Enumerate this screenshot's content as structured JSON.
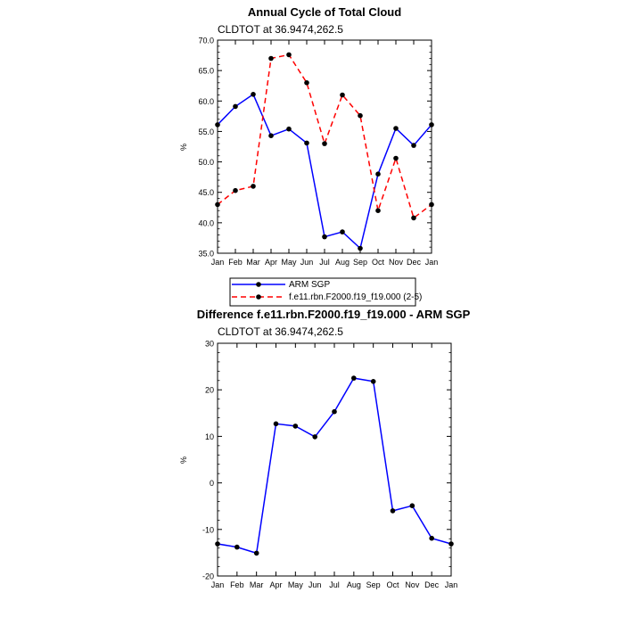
{
  "chart_data": [
    {
      "type": "line",
      "title": "Annual Cycle of Total Cloud",
      "subtitle": "CLDTOT at 36.9474,262.5",
      "xlabel": "",
      "ylabel": "%",
      "categories": [
        "Jan",
        "Feb",
        "Mar",
        "Apr",
        "May",
        "Jun",
        "Jul",
        "Aug",
        "Sep",
        "Oct",
        "Nov",
        "Dec",
        "Jan"
      ],
      "ylim": [
        35.0,
        70.0
      ],
      "yticks": [
        35.0,
        40.0,
        45.0,
        50.0,
        55.0,
        60.0,
        65.0,
        70.0
      ],
      "ytick_labels": [
        "35.0",
        "40.0",
        "45.0",
        "50.0",
        "55.0",
        "60.0",
        "65.0",
        "70.0"
      ],
      "legend_position": "below",
      "series": [
        {
          "name": "ARM SGP",
          "color": "#0000ff",
          "style": "solid",
          "values": [
            56.1,
            59.1,
            61.1,
            54.3,
            55.4,
            53.1,
            37.7,
            38.5,
            35.8,
            48.0,
            55.5,
            52.7,
            56.1
          ]
        },
        {
          "name": "f.e11.rbn.F2000.f19_f19.000 (2-5)",
          "color": "#ff0000",
          "style": "dashed",
          "values": [
            43.0,
            45.3,
            46.0,
            67.0,
            67.6,
            63.0,
            53.0,
            61.0,
            57.6,
            42.0,
            50.6,
            40.8,
            43.0
          ]
        }
      ]
    },
    {
      "type": "line",
      "title": "Difference f.e11.rbn.F2000.f19_f19.000 - ARM SGP",
      "subtitle": "CLDTOT at 36.9474,262.5",
      "xlabel": "",
      "ylabel": "%",
      "categories": [
        "Jan",
        "Feb",
        "Mar",
        "Apr",
        "May",
        "Jun",
        "Jul",
        "Aug",
        "Sep",
        "Oct",
        "Nov",
        "Dec",
        "Jan"
      ],
      "ylim": [
        -20,
        30
      ],
      "yticks": [
        -20,
        -10,
        0,
        10,
        20,
        30
      ],
      "ytick_labels": [
        "-20",
        "-10",
        "0",
        "10",
        "20",
        "30"
      ],
      "series": [
        {
          "name": "Difference",
          "color": "#0000ff",
          "style": "solid",
          "values": [
            -13.1,
            -13.8,
            -15.1,
            12.7,
            12.2,
            9.9,
            15.3,
            22.5,
            21.8,
            -6.0,
            -4.9,
            -11.9,
            -13.1
          ]
        }
      ]
    }
  ]
}
